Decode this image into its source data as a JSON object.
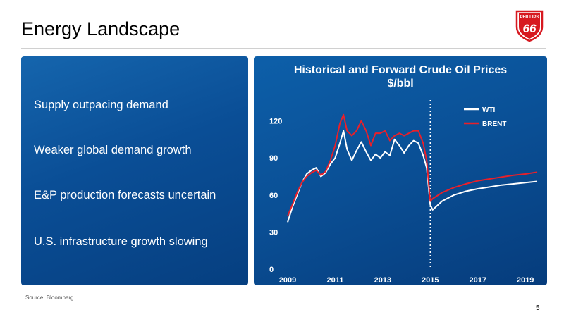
{
  "slide": {
    "title": "Energy Landscape",
    "bullets": [
      "Supply outpacing demand",
      "Weaker global demand growth",
      "E&P production forecasts uncertain",
      "U.S. infrastructure growth slowing"
    ],
    "source": "Source: Bloomberg",
    "page_number": "5",
    "logo_text_top": "PHILLIPS",
    "logo_text_main": "66"
  },
  "colors": {
    "panel_blue": "#0a4f95",
    "wti": "#ffffff",
    "brent": "#e8202a",
    "logo_red": "#d71920"
  },
  "chart_data": {
    "type": "line",
    "title": "Historical and Forward Crude Oil Prices",
    "subtitle": "$/bbl",
    "x_ticks": [
      "2009",
      "2011",
      "2013",
      "2015",
      "2017",
      "2019"
    ],
    "y_ticks": [
      "0",
      "30",
      "60",
      "90",
      "120"
    ],
    "xlim": [
      2009.0,
      2019.5
    ],
    "ylim": [
      0,
      130
    ],
    "historical_forward_divider": 2015.0,
    "legend": "top-right",
    "grid": false,
    "series": [
      {
        "name": "WTI",
        "x": [
          2009.0,
          2009.2,
          2009.4,
          2009.6,
          2009.8,
          2010.0,
          2010.2,
          2010.4,
          2010.6,
          2010.8,
          2011.0,
          2011.2,
          2011.35,
          2011.5,
          2011.7,
          2011.9,
          2012.1,
          2012.3,
          2012.5,
          2012.7,
          2012.9,
          2013.1,
          2013.3,
          2013.5,
          2013.7,
          2013.9,
          2014.1,
          2014.3,
          2014.5,
          2014.7,
          2014.85,
          2015.0,
          2015.1,
          2015.5,
          2016.0,
          2016.5,
          2017.0,
          2017.5,
          2018.0,
          2018.5,
          2019.0,
          2019.5
        ],
        "y": [
          38,
          50,
          60,
          70,
          77,
          80,
          82,
          75,
          78,
          85,
          90,
          102,
          112,
          97,
          88,
          96,
          103,
          95,
          88,
          93,
          90,
          95,
          92,
          105,
          100,
          94,
          100,
          104,
          102,
          92,
          82,
          52,
          48,
          55,
          60,
          63,
          65,
          66.5,
          68,
          69,
          70,
          71
        ]
      },
      {
        "name": "BRENT",
        "x": [
          2009.0,
          2009.2,
          2009.4,
          2009.6,
          2009.8,
          2010.0,
          2010.2,
          2010.4,
          2010.6,
          2010.8,
          2011.0,
          2011.2,
          2011.35,
          2011.5,
          2011.7,
          2011.9,
          2012.1,
          2012.3,
          2012.5,
          2012.7,
          2012.9,
          2013.1,
          2013.3,
          2013.5,
          2013.7,
          2013.9,
          2014.1,
          2014.3,
          2014.5,
          2014.7,
          2014.85,
          2015.0,
          2015.1,
          2015.5,
          2016.0,
          2016.5,
          2017.0,
          2017.5,
          2018.0,
          2018.5,
          2019.0,
          2019.5
        ],
        "y": [
          43,
          52,
          62,
          70,
          75,
          78,
          80,
          76,
          79,
          88,
          100,
          118,
          125,
          112,
          108,
          112,
          120,
          112,
          100,
          110,
          110,
          112,
          104,
          108,
          110,
          108,
          110,
          112,
          112,
          102,
          88,
          55,
          57,
          62,
          66,
          69,
          71.5,
          73,
          74.5,
          76,
          77,
          78.5
        ]
      }
    ]
  }
}
